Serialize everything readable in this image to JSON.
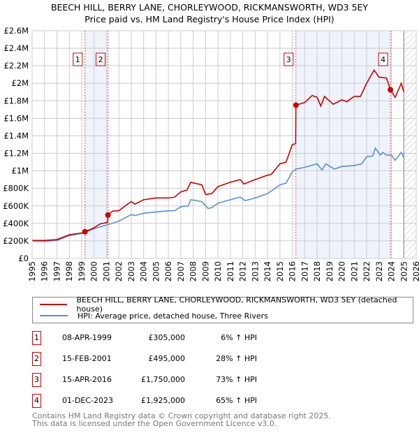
{
  "chart_data": {
    "type": "line",
    "title": "BEECH HILL, BERRY LANE, CHORLEYWOOD, RICKMANSWORTH, WD3 5EY",
    "subtitle": "Price paid vs. HM Land Registry's House Price Index (HPI)",
    "xlim": [
      1995,
      2026
    ],
    "ylim": [
      0,
      2600000
    ],
    "x_ticks": [
      "1995",
      "1996",
      "1997",
      "1998",
      "1999",
      "2000",
      "2001",
      "2002",
      "2003",
      "2004",
      "2005",
      "2006",
      "2007",
      "2008",
      "2009",
      "2010",
      "2011",
      "2012",
      "2013",
      "2014",
      "2015",
      "2016",
      "2017",
      "2018",
      "2019",
      "2020",
      "2021",
      "2022",
      "2023",
      "2024",
      "2025",
      "2026"
    ],
    "y_ticks": [
      {
        "v": 0,
        "label": "£0"
      },
      {
        "v": 200000,
        "label": "£200K"
      },
      {
        "v": 400000,
        "label": "£400K"
      },
      {
        "v": 600000,
        "label": "£600K"
      },
      {
        "v": 800000,
        "label": "£800K"
      },
      {
        "v": 1000000,
        "label": "£1M"
      },
      {
        "v": 1200000,
        "label": "£1.2M"
      },
      {
        "v": 1400000,
        "label": "£1.4M"
      },
      {
        "v": 1600000,
        "label": "£1.6M"
      },
      {
        "v": 1800000,
        "label": "£1.8M"
      },
      {
        "v": 2000000,
        "label": "£2M"
      },
      {
        "v": 2200000,
        "label": "£2.2M"
      },
      {
        "v": 2400000,
        "label": "£2.4M"
      },
      {
        "v": 2600000,
        "label": "£2.6M"
      }
    ],
    "grid": true,
    "forecast_hatch_from": 2025.0,
    "series": [
      {
        "name": "BEECH HILL, BERRY LANE, CHORLEYWOOD, RICKMANSWORTH, WD3 5EY (detached house)",
        "color": "#cc0000",
        "x": [
          1995,
          1996,
          1997,
          1998,
          1999,
          1999.27,
          2000,
          2000.5,
          2001.1,
          2001.12,
          2001.5,
          2002,
          2003,
          2003.3,
          2004,
          2005,
          2006,
          2006.5,
          2007,
          2007.5,
          2007.8,
          2008.7,
          2009,
          2009.5,
          2010,
          2011,
          2011.8,
          2012.1,
          2013,
          2014,
          2014.3,
          2015,
          2015.5,
          2016,
          2016.27,
          2016.29,
          2017,
          2017.6,
          2018,
          2018.3,
          2018.6,
          2019.3,
          2020,
          2020.4,
          2021,
          2021.5,
          2022,
          2022.6,
          2023,
          2023.6,
          2023.92,
          2024.3,
          2024.8,
          2025
        ],
        "y": [
          205000,
          205000,
          215000,
          270000,
          290000,
          305000,
          350000,
          395000,
          410000,
          495000,
          540000,
          545000,
          650000,
          620000,
          670000,
          690000,
          690000,
          700000,
          760000,
          780000,
          870000,
          840000,
          730000,
          740000,
          820000,
          870000,
          900000,
          850000,
          900000,
          950000,
          960000,
          1080000,
          1100000,
          1300000,
          1310000,
          1750000,
          1780000,
          1860000,
          1840000,
          1740000,
          1850000,
          1760000,
          1810000,
          1790000,
          1850000,
          1850000,
          2000000,
          2150000,
          2070000,
          2060000,
          1925000,
          1840000,
          2000000,
          1900000
        ]
      },
      {
        "name": "HPI: Average price, detached house, Three Rivers",
        "color": "#5b8fd4",
        "x": [
          1995,
          1996,
          1997,
          1998,
          1999,
          1999.3,
          2000,
          2001,
          2002,
          2003,
          2003.3,
          2004,
          2005,
          2006,
          2006.5,
          2007,
          2007.6,
          2007.8,
          2008.7,
          2009.2,
          2009.5,
          2010,
          2011,
          2011.8,
          2012.2,
          2013,
          2014,
          2015,
          2015.5,
          2016,
          2016.3,
          2017,
          2018,
          2018.4,
          2018.7,
          2019.4,
          2020,
          2021,
          2021.6,
          2022,
          2022.5,
          2022.7,
          2023.1,
          2023.3,
          2023.6,
          2024,
          2024.3,
          2024.8,
          2025
        ],
        "y": [
          200000,
          195000,
          205000,
          260000,
          285000,
          295000,
          340000,
          380000,
          425000,
          500000,
          490000,
          515000,
          530000,
          545000,
          545000,
          590000,
          600000,
          670000,
          650000,
          570000,
          580000,
          630000,
          670000,
          700000,
          660000,
          690000,
          740000,
          840000,
          860000,
          990000,
          1020000,
          1040000,
          1080000,
          1010000,
          1080000,
          1020000,
          1050000,
          1060000,
          1080000,
          1160000,
          1170000,
          1260000,
          1180000,
          1210000,
          1180000,
          1180000,
          1120000,
          1210000,
          1150000
        ]
      }
    ],
    "sales": [
      {
        "n": "1",
        "x": 1999.27,
        "price": 305000,
        "date": "08-APR-1999",
        "price_label": "£305,000",
        "hpi": "6% ↑ HPI"
      },
      {
        "n": "2",
        "x": 2001.12,
        "price": 495000,
        "date": "15-FEB-2001",
        "price_label": "£495,000",
        "hpi": "28% ↑ HPI"
      },
      {
        "n": "3",
        "x": 2016.29,
        "price": 1750000,
        "date": "15-APR-2016",
        "price_label": "£1,750,000",
        "hpi": "73% ↑ HPI"
      },
      {
        "n": "4",
        "x": 2023.92,
        "price": 1925000,
        "date": "01-DEC-2023",
        "price_label": "£1,925,000",
        "hpi": "65% ↑ HPI"
      }
    ],
    "shaded_ranges": [
      [
        1999.27,
        2001.12
      ],
      [
        2016.29,
        2023.92
      ]
    ]
  },
  "footer": {
    "line1": "Contains HM Land Registry data © Crown copyright and database right 2025.",
    "line2": "This data is licensed under the Open Government Licence v3.0."
  }
}
